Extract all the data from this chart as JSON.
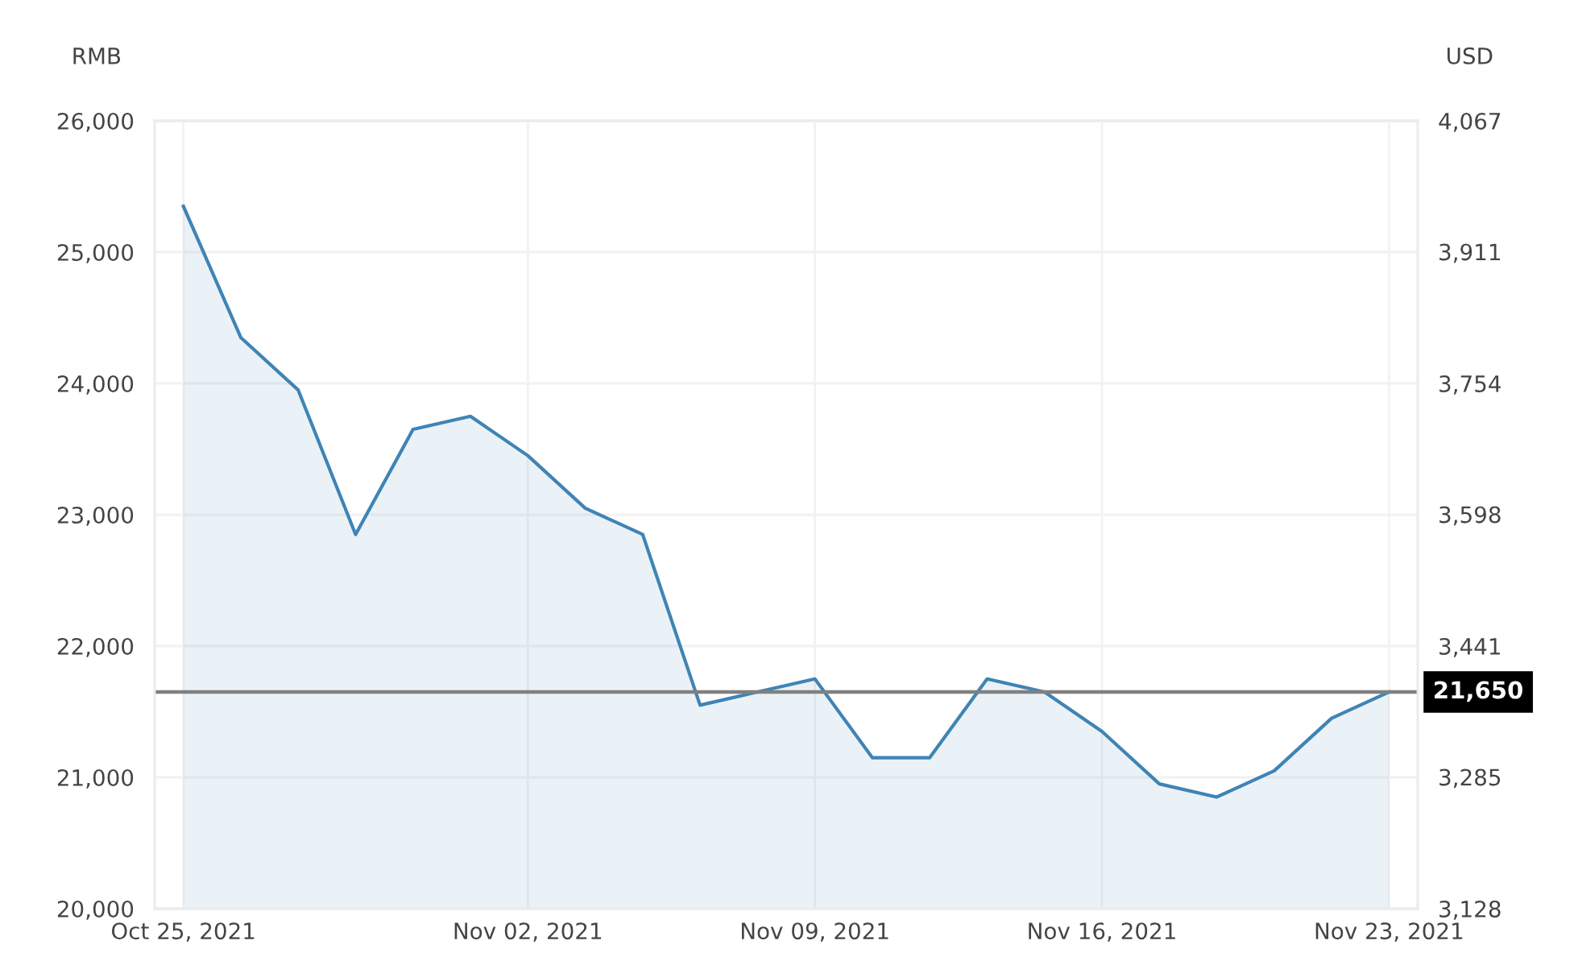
{
  "chart_data": {
    "type": "area",
    "ylabel": "RMB",
    "y2label": "USD",
    "categories": [
      "Oct 25, 2021",
      null,
      null,
      null,
      null,
      null,
      "Nov 02, 2021",
      null,
      null,
      null,
      null,
      "Nov 09, 2021",
      null,
      null,
      null,
      null,
      "Nov 16, 2021",
      null,
      null,
      null,
      null,
      "Nov 23, 2021"
    ],
    "series": [
      {
        "color": "#3f84b5",
        "values": [
          25350,
          24350,
          23950,
          22850,
          23650,
          23750,
          23450,
          23050,
          22850,
          21550,
          21650,
          21750,
          21150,
          21150,
          21750,
          21650,
          21350,
          20950,
          20850,
          21050,
          21450,
          21650
        ]
      }
    ],
    "ylim": [
      20000,
      26000
    ],
    "yticks": [
      {
        "value": 20000,
        "label": "20,000"
      },
      {
        "value": 21000,
        "label": "21,000"
      },
      {
        "value": 22000,
        "label": "22,000"
      },
      {
        "value": 23000,
        "label": "23,000"
      },
      {
        "value": 24000,
        "label": "24,000"
      },
      {
        "value": 25000,
        "label": "25,000"
      },
      {
        "value": 26000,
        "label": "26,000"
      }
    ],
    "y2lim": [
      3128,
      4067
    ],
    "y2ticks": [
      {
        "value": 3128,
        "label": "3,128"
      },
      {
        "value": 3285,
        "label": "3,285"
      },
      {
        "value": 3441,
        "label": "3,441"
      },
      {
        "value": 3598,
        "label": "3,598"
      },
      {
        "value": 3754,
        "label": "3,754"
      },
      {
        "value": 3911,
        "label": "3,911"
      },
      {
        "value": 4067,
        "label": "4,067"
      }
    ],
    "ref_lines": [
      {
        "axis": "y",
        "value": 21650,
        "label": "21,650",
        "color": "#808080"
      }
    ],
    "grid": true
  }
}
